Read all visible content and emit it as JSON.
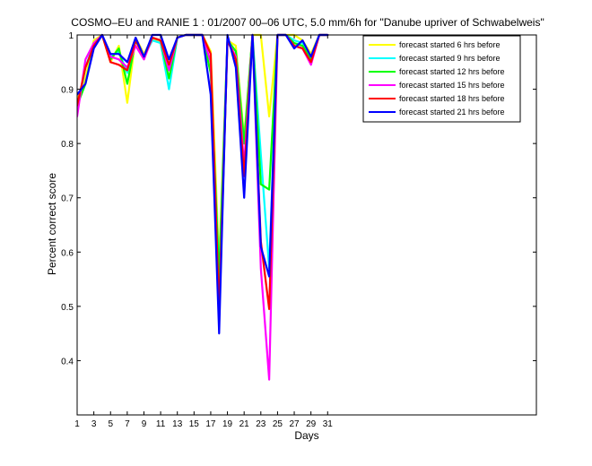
{
  "chart_data": {
    "type": "line",
    "title": "COSMO–EU and RANIE 1 : 01/2007 00–06 UTC, 5.0 mm/6h for \"Danube upriver of Schwabelweis\"",
    "xlabel": "Days",
    "ylabel": "Percent correct score",
    "xlim": [
      1,
      56
    ],
    "ylim": [
      0.3,
      1.0
    ],
    "xticks": [
      1,
      3,
      5,
      7,
      9,
      11,
      13,
      15,
      17,
      19,
      21,
      23,
      25,
      27,
      29,
      31
    ],
    "yticks": [
      0.4,
      0.5,
      0.6,
      0.7,
      0.8,
      0.9,
      1
    ],
    "ytick_labels": [
      "0.4",
      "0.5",
      "0.6",
      "0.7",
      "0.8",
      "0.9",
      "1"
    ],
    "grid": false,
    "legend_position": "top-right",
    "x": [
      1,
      2,
      3,
      4,
      5,
      6,
      7,
      8,
      9,
      10,
      11,
      12,
      13,
      14,
      15,
      16,
      17,
      18,
      19,
      20,
      21,
      22,
      23,
      24,
      25,
      26,
      27,
      28,
      29,
      30,
      31
    ],
    "series": [
      {
        "name": "forecast started 6 hrs before",
        "color": "#ffff00",
        "values": [
          0.88,
          0.92,
          0.99,
          1.0,
          0.95,
          0.98,
          0.875,
          0.995,
          0.965,
          0.995,
          0.985,
          0.935,
          0.995,
          1.0,
          1.0,
          1.0,
          0.97,
          0.58,
          0.99,
          0.98,
          0.81,
          1.0,
          1.0,
          0.85,
          1.0,
          1.0,
          1.0,
          0.99,
          0.965,
          1.0,
          1.0
        ]
      },
      {
        "name": "forecast started 9 hrs before",
        "color": "#00ffff",
        "values": [
          0.86,
          0.94,
          0.985,
          1.0,
          0.96,
          0.97,
          0.93,
          0.99,
          0.96,
          0.99,
          0.985,
          0.9,
          0.995,
          1.0,
          1.0,
          1.0,
          0.93,
          0.56,
          0.99,
          0.97,
          0.8,
          1.0,
          0.78,
          0.57,
          1.0,
          1.0,
          0.99,
          0.985,
          0.96,
          1.0,
          1.0
        ]
      },
      {
        "name": "forecast started 12 hrs before",
        "color": "#00ff00",
        "values": [
          0.87,
          0.91,
          0.98,
          1.0,
          0.955,
          0.975,
          0.91,
          0.99,
          0.96,
          0.995,
          0.99,
          0.92,
          0.995,
          1.0,
          1.0,
          1.0,
          0.93,
          0.55,
          0.99,
          0.97,
          0.8,
          1.0,
          0.725,
          0.715,
          1.0,
          1.0,
          0.985,
          0.98,
          0.955,
          1.0,
          1.0
        ]
      },
      {
        "name": "forecast started 15 hrs before",
        "color": "#ff00ff",
        "values": [
          0.85,
          0.955,
          0.985,
          1.0,
          0.96,
          0.955,
          0.94,
          0.98,
          0.955,
          0.995,
          0.99,
          0.935,
          0.995,
          1.0,
          1.0,
          1.0,
          0.95,
          0.48,
          0.99,
          0.96,
          0.76,
          1.0,
          0.57,
          0.365,
          1.0,
          1.0,
          0.98,
          0.975,
          0.945,
          1.0,
          1.0
        ]
      },
      {
        "name": "forecast started 18 hrs before",
        "color": "#ff0000",
        "values": [
          0.87,
          0.94,
          0.98,
          1.0,
          0.95,
          0.945,
          0.935,
          0.99,
          0.96,
          0.995,
          0.99,
          0.945,
          0.995,
          1.0,
          1.0,
          1.0,
          0.965,
          0.49,
          0.99,
          0.955,
          0.74,
          1.0,
          0.62,
          0.495,
          1.0,
          1.0,
          0.98,
          0.975,
          0.95,
          1.0,
          1.0
        ]
      },
      {
        "name": "forecast started 21 hrs before",
        "color": "#0000ff",
        "values": [
          0.89,
          0.91,
          0.975,
          1.0,
          0.965,
          0.965,
          0.95,
          0.995,
          0.96,
          1.0,
          1.0,
          0.955,
          0.995,
          1.0,
          1.0,
          1.0,
          0.89,
          0.45,
          1.0,
          0.94,
          0.7,
          1.0,
          0.61,
          0.555,
          1.0,
          1.0,
          0.975,
          0.99,
          0.96,
          1.0,
          1.0
        ]
      }
    ]
  }
}
